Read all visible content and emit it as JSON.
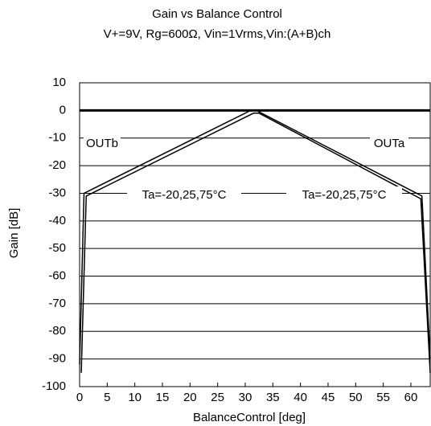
{
  "chart_data": {
    "type": "line",
    "title": "Gain vs Balance Control",
    "subtitle": "V+=9V, Rg=600Ω, Vin=1Vrms,Vin:(A+B)ch",
    "x_label": "BalanceControl [deg]",
    "y_label": "Gain [dB]",
    "annotations": [
      "OUTb",
      "OUTa",
      "Ta=-20,25,75°C",
      "Ta=-20,25,75°C"
    ],
    "series": [
      {
        "color": "#000000",
        "x": [
          0,
          0.8,
          31,
          32,
          62,
          63.5
        ],
        "values": [
          -92,
          -30,
          0,
          0,
          -31,
          -90
        ]
      },
      {
        "color": "#000000",
        "x": [
          0.3,
          1.2,
          31.5,
          32.5,
          61.8,
          63.5
        ],
        "values": [
          -95,
          -31,
          -1,
          -1,
          -32,
          -95
        ]
      }
    ],
    "xlim": [
      0,
      63.5
    ],
    "xticks": [
      0,
      5,
      10,
      15,
      20,
      25,
      30,
      35,
      40,
      45,
      50,
      55,
      60
    ],
    "ylim": [
      -100,
      10
    ],
    "yticks": [
      10,
      0,
      -10,
      -20,
      -30,
      -40,
      -50,
      -60,
      -70,
      -80,
      -90,
      -100
    ],
    "grid": true
  }
}
